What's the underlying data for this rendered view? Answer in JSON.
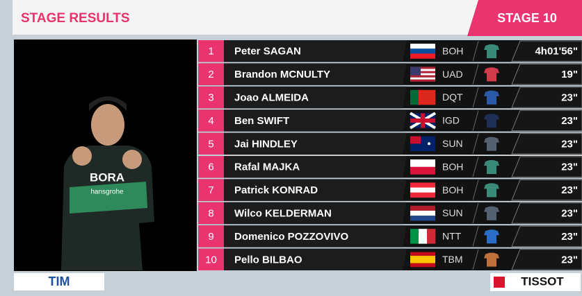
{
  "header": {
    "title": "STAGE RESULTS",
    "stage": "STAGE 10"
  },
  "video": {
    "jersey_brand": "BORA",
    "jersey_sponsor": "hansgrohe"
  },
  "table": {
    "rows": [
      {
        "rank": "1",
        "name": "Peter SAGAN",
        "team": "BOH",
        "time": "4h01'56\""
      },
      {
        "rank": "2",
        "name": "Brandon MCNULTY",
        "team": "UAD",
        "time": "19\""
      },
      {
        "rank": "3",
        "name": "Joao ALMEIDA",
        "team": "DQT",
        "time": "23\""
      },
      {
        "rank": "4",
        "name": "Ben SWIFT",
        "team": "IGD",
        "time": "23\""
      },
      {
        "rank": "5",
        "name": "Jai HINDLEY",
        "team": "SUN",
        "time": "23\""
      },
      {
        "rank": "6",
        "name": "Rafal MAJKA",
        "team": "BOH",
        "time": "23\""
      },
      {
        "rank": "7",
        "name": "Patrick KONRAD",
        "team": "BOH",
        "time": "23\""
      },
      {
        "rank": "8",
        "name": "Wilco KELDERMAN",
        "team": "SUN",
        "time": "23\""
      },
      {
        "rank": "9",
        "name": "Domenico POZZOVIVO",
        "team": "NTT",
        "time": "23\""
      },
      {
        "rank": "10",
        "name": "Pello BILBAO",
        "team": "TBM",
        "time": "23\""
      }
    ]
  },
  "sponsors": {
    "left": "TIM",
    "right": "TISSOT"
  }
}
